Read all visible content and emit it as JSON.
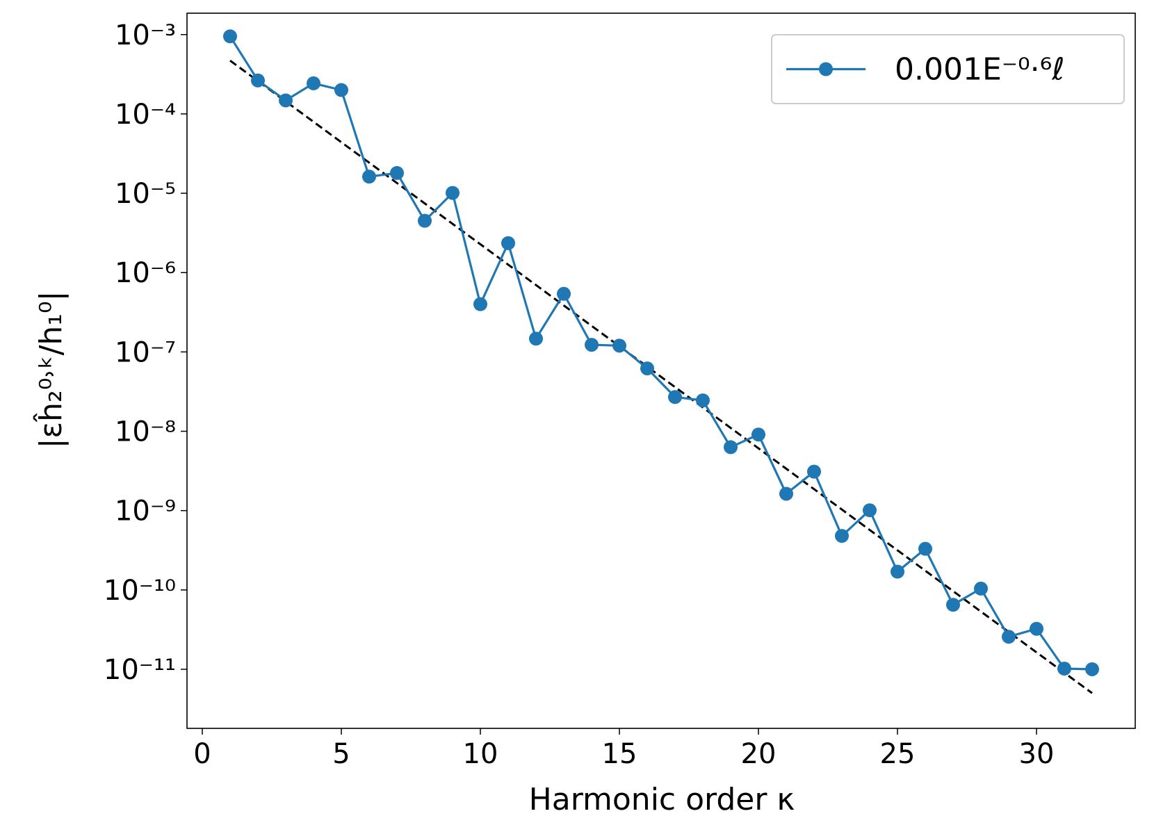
{
  "chart_data": {
    "type": "line",
    "x_label": "Harmonic order κ",
    "y_label": "|εĥ₂⁰˒ᵏ/h₁⁰|",
    "log_y": true,
    "legend_position": "upper right",
    "xlim": [
      -0.55,
      33.55
    ],
    "ylim": [
      1.8e-12,
      0.00186
    ],
    "xticks": [
      0,
      5,
      10,
      15,
      20,
      25,
      30
    ],
    "yticks": [
      {
        "value": 0.001,
        "label": "10⁻³"
      },
      {
        "value": 0.0001,
        "label": "10⁻⁴"
      },
      {
        "value": 1e-05,
        "label": "10⁻⁵"
      },
      {
        "value": 1e-06,
        "label": "10⁻⁶"
      },
      {
        "value": 1e-07,
        "label": "10⁻⁷"
      },
      {
        "value": 1e-08,
        "label": "10⁻⁸"
      },
      {
        "value": 1e-09,
        "label": "10⁻⁹"
      },
      {
        "value": 1e-10,
        "label": "10⁻¹⁰"
      },
      {
        "value": 1e-11,
        "label": "10⁻¹¹"
      }
    ],
    "x": [
      1,
      2,
      3,
      4,
      5,
      6,
      7,
      8,
      9,
      10,
      11,
      12,
      13,
      14,
      15,
      16,
      17,
      18,
      19,
      20,
      21,
      22,
      23,
      24,
      25,
      26,
      27,
      28,
      29,
      30,
      31,
      32
    ],
    "series": [
      {
        "name": "0.001E⁻⁰·⁶ℓ",
        "color": "#1f77b4",
        "values": [
          0.00095,
          0.000264,
          0.000148,
          0.000243,
          0.0002,
          1.62e-05,
          1.8e-05,
          4.5e-06,
          1.01e-05,
          4e-07,
          2.35e-06,
          1.47e-07,
          5.4e-07,
          1.23e-07,
          1.2e-07,
          6.2e-08,
          2.7e-08,
          2.45e-08,
          6.3e-09,
          9.1e-09,
          1.63e-09,
          3.1e-09,
          4.8e-10,
          1.01e-09,
          1.7e-10,
          3.3e-10,
          6.5e-11,
          1.04e-10,
          2.57e-11,
          3.24e-11,
          1.02e-11,
          1e-11
        ]
      }
    ],
    "fit": {
      "x": [
        1,
        32
      ],
      "values": [
        0.00047,
        5e-12
      ],
      "color": "#000000",
      "dashed": true
    }
  }
}
